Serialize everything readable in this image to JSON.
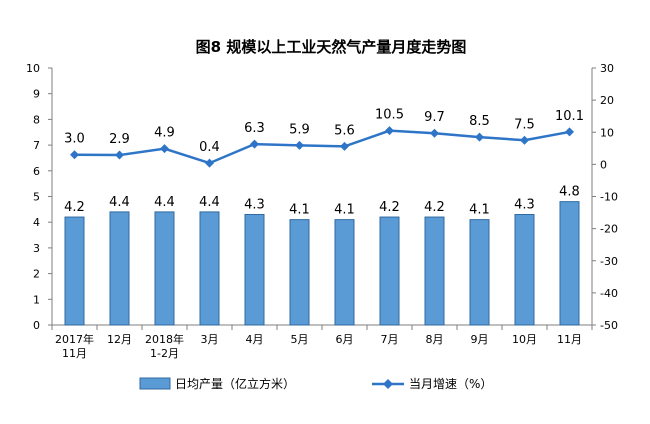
{
  "chart_data": {
    "type": "bar+line",
    "title": "图8  规模以上工业天然气产量月度走势图",
    "categories": [
      [
        "2017年",
        "11月"
      ],
      [
        "12月"
      ],
      [
        "2018年",
        "1-2月"
      ],
      [
        "3月"
      ],
      [
        "4月"
      ],
      [
        "5月"
      ],
      [
        "6月"
      ],
      [
        "7月"
      ],
      [
        "8月"
      ],
      [
        "9月"
      ],
      [
        "10月"
      ],
      [
        "11月"
      ]
    ],
    "series": [
      {
        "name": "日均产量（亿立方米）",
        "type": "bar",
        "axis": "left",
        "values": [
          4.2,
          4.4,
          4.4,
          4.4,
          4.3,
          4.1,
          4.1,
          4.2,
          4.2,
          4.1,
          4.3,
          4.8
        ],
        "labels": [
          "4.2",
          "4.4",
          "4.4",
          "4.4",
          "4.3",
          "4.1",
          "4.1",
          "4.2",
          "4.2",
          "4.1",
          "4.3",
          "4.8"
        ],
        "color": "#5b9bd5"
      },
      {
        "name": "当月增速（%）",
        "type": "line",
        "axis": "right",
        "values": [
          3.0,
          2.9,
          4.9,
          0.4,
          6.3,
          5.9,
          5.6,
          10.5,
          9.7,
          8.5,
          7.5,
          10.1
        ],
        "labels": [
          "3.0",
          "2.9",
          "4.9",
          "0.4",
          "6.3",
          "5.9",
          "5.6",
          "10.5",
          "9.7",
          "8.5",
          "7.5",
          "10.1"
        ],
        "color": "#2e75c8"
      }
    ],
    "y_left": {
      "ylim": [
        0,
        10
      ],
      "ticks": [
        "0",
        "1",
        "2",
        "3",
        "4",
        "5",
        "6",
        "7",
        "8",
        "9",
        "10"
      ]
    },
    "y_right": {
      "ylim": [
        -50,
        30
      ],
      "ticks": [
        "-50",
        "-40",
        "-30",
        "-20",
        "-10",
        "0",
        "10",
        "20",
        "30"
      ]
    },
    "grid": false,
    "legend_position": "bottom"
  }
}
